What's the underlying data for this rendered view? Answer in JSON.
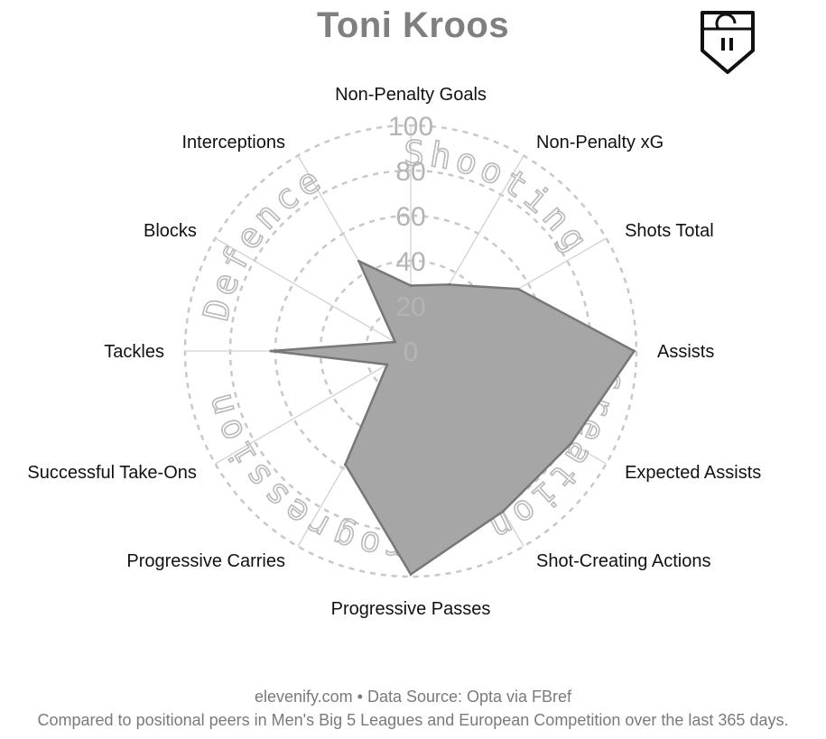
{
  "title": "Toni Kroos",
  "footer": {
    "source": "elevenify.com • Data Source: Opta via FBref",
    "note": "Compared to positional peers in Men's Big 5 Leagues and European Competition over the last 365 days."
  },
  "logo": {
    "icon": "shield-logo-icon",
    "color": "#111111"
  },
  "colors": {
    "fill": "#a6a6a6",
    "stroke": "#777777",
    "grid": "#c8c8c8",
    "spoke": "#d2d2d2",
    "tick": "#b4b4b4",
    "group": "#b9b9b9"
  },
  "chart_data": {
    "type": "radar",
    "title": "Toni Kroos",
    "rlim": [
      0,
      100
    ],
    "ticks": [
      0,
      20,
      40,
      60,
      80,
      100
    ],
    "grid": true,
    "categories": [
      "Non-Penalty Goals",
      "Non-Penalty xG",
      "Shots Total",
      "Assists",
      "Expected Assists",
      "Shot-Creating Actions",
      "Progressive Passes",
      "Progressive Carries",
      "Successful Take-Ons",
      "Tackles",
      "Blocks",
      "Interceptions"
    ],
    "values": [
      29,
      34,
      55,
      99,
      82,
      82,
      99,
      58,
      12,
      62,
      8,
      46
    ],
    "groups": [
      {
        "name": "Shooting"
      },
      {
        "name": "Creation"
      },
      {
        "name": "Progression"
      },
      {
        "name": "Defence"
      }
    ]
  }
}
